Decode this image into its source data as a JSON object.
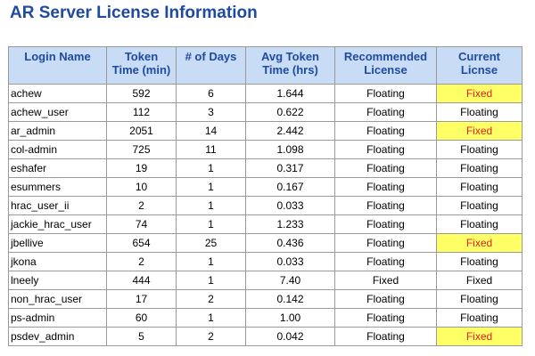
{
  "page": {
    "title": "AR Server License Information"
  },
  "table": {
    "headers": {
      "login": "Login Name",
      "token_time": "Token Time (min)",
      "days": "# of Days",
      "avg_time": "Avg Token Time (hrs)",
      "recommended": "Recommended License",
      "current": "Current Licnse"
    },
    "highlight_colors": {
      "background": "#ffff66",
      "text": "#e02020"
    },
    "rows": [
      {
        "login": "achew",
        "token_time": "592",
        "days": "6",
        "avg_time": "1.644",
        "recommended": "Floating",
        "current": "Fixed",
        "highlight": true
      },
      {
        "login": "achew_user",
        "token_time": "112",
        "days": "3",
        "avg_time": "0.622",
        "recommended": "Floating",
        "current": "Floating",
        "highlight": false
      },
      {
        "login": "ar_admin",
        "token_time": "2051",
        "days": "14",
        "avg_time": "2.442",
        "recommended": "Floating",
        "current": "Fixed",
        "highlight": true
      },
      {
        "login": "col-admin",
        "token_time": "725",
        "days": "11",
        "avg_time": "1.098",
        "recommended": "Floating",
        "current": "Floating",
        "highlight": false
      },
      {
        "login": "eshafer",
        "token_time": "19",
        "days": "1",
        "avg_time": "0.317",
        "recommended": "Floating",
        "current": "Floating",
        "highlight": false
      },
      {
        "login": "esummers",
        "token_time": "10",
        "days": "1",
        "avg_time": "0.167",
        "recommended": "Floating",
        "current": "Floating",
        "highlight": false
      },
      {
        "login": "hrac_user_ii",
        "token_time": "2",
        "days": "1",
        "avg_time": "0.033",
        "recommended": "Floating",
        "current": "Floating",
        "highlight": false
      },
      {
        "login": "jackie_hrac_user",
        "token_time": "74",
        "days": "1",
        "avg_time": "1.233",
        "recommended": "Floating",
        "current": "Floating",
        "highlight": false
      },
      {
        "login": "jbellive",
        "token_time": "654",
        "days": "25",
        "avg_time": "0.436",
        "recommended": "Floating",
        "current": "Fixed",
        "highlight": true
      },
      {
        "login": "jkona",
        "token_time": "2",
        "days": "1",
        "avg_time": "0.033",
        "recommended": "Floating",
        "current": "Floating",
        "highlight": false
      },
      {
        "login": "lneely",
        "token_time": "444",
        "days": "1",
        "avg_time": "7.40",
        "recommended": "Fixed",
        "current": "Fixed",
        "highlight": false
      },
      {
        "login": "non_hrac_user",
        "token_time": "17",
        "days": "2",
        "avg_time": "0.142",
        "recommended": "Floating",
        "current": "Floating",
        "highlight": false
      },
      {
        "login": "ps-admin",
        "token_time": "60",
        "days": "1",
        "avg_time": "1.00",
        "recommended": "Floating",
        "current": "Floating",
        "highlight": false
      },
      {
        "login": "psdev_admin",
        "token_time": "5",
        "days": "2",
        "avg_time": "0.042",
        "recommended": "Floating",
        "current": "Fixed",
        "highlight": true
      }
    ]
  }
}
